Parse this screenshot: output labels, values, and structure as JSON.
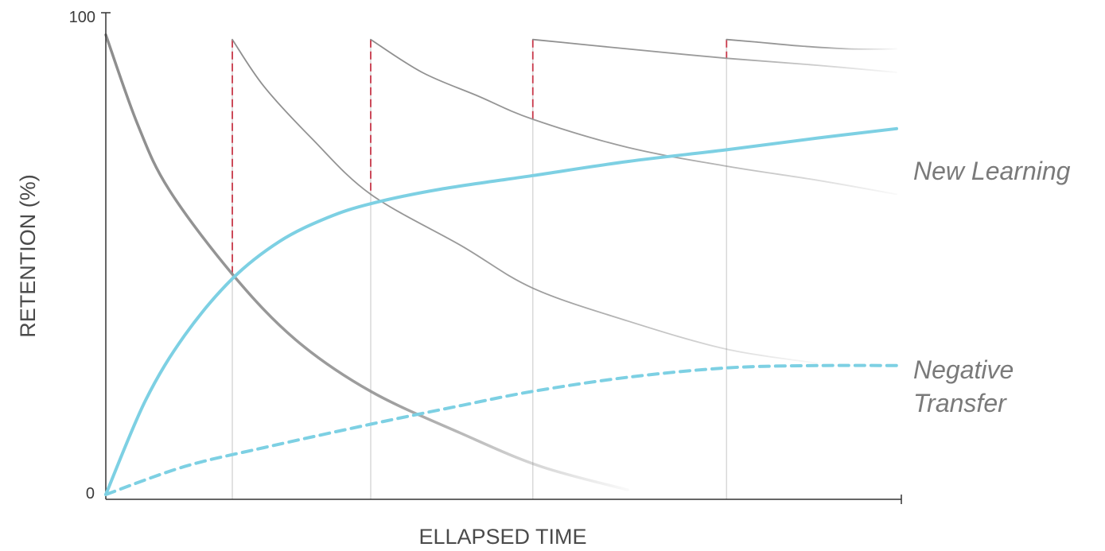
{
  "chart_data": {
    "type": "line",
    "xlabel": "ELLAPSED TIME",
    "ylabel": "RETENTION (%)",
    "ylim": [
      0,
      100
    ],
    "xlim": [
      0,
      100
    ],
    "y_ticks": [
      "0",
      "100"
    ],
    "grid": false,
    "review_points": [
      16,
      33.5,
      54,
      78.5
    ],
    "series": [
      {
        "name": "New Learning",
        "color": "#7dd0e3",
        "style": "solid",
        "x": [
          0,
          5,
          10,
          16,
          22,
          28,
          33.5,
          42,
          54,
          66,
          78.5,
          90,
          100
        ],
        "values": [
          0,
          20,
          34,
          46,
          54,
          59,
          62,
          65,
          68,
          71,
          73.5,
          76,
          78
        ]
      },
      {
        "name": "Negative Transfer",
        "color": "#7dd0e3",
        "style": "dashed",
        "x": [
          0,
          10,
          20,
          33.5,
          45,
          54,
          66,
          78.5,
          90,
          100
        ],
        "values": [
          0,
          6,
          10,
          15,
          19,
          22,
          25,
          27,
          27.5,
          27.5
        ]
      }
    ],
    "forgetting_curves": [
      {
        "color": "#9a9a9a",
        "x": [
          0,
          4,
          8,
          16,
          24,
          33.5,
          45,
          55,
          66
        ],
        "values": [
          98,
          79,
          65,
          47,
          33,
          22,
          13,
          6,
          1
        ]
      },
      {
        "color": "#a0a0a0",
        "x": [
          16,
          20,
          26,
          33.5,
          45,
          54,
          66,
          78.5,
          90
        ],
        "values": [
          97,
          87,
          76,
          64,
          53,
          44,
          37,
          31,
          28
        ]
      },
      {
        "color": "#a0a0a0",
        "x": [
          33.5,
          40,
          47,
          54,
          66,
          78.5,
          90,
          100
        ],
        "values": [
          97,
          90,
          85,
          80,
          74,
          70,
          67,
          64
        ]
      },
      {
        "color": "#a0a0a0",
        "x": [
          54,
          60,
          66,
          78.5,
          90,
          100
        ],
        "values": [
          97,
          96,
          95,
          93,
          91.5,
          90
        ]
      },
      {
        "color": "#9a9a9a",
        "x": [
          78.5,
          82,
          88,
          94,
          100
        ],
        "values": [
          97,
          96.5,
          95.6,
          95,
          95
        ]
      }
    ]
  }
}
